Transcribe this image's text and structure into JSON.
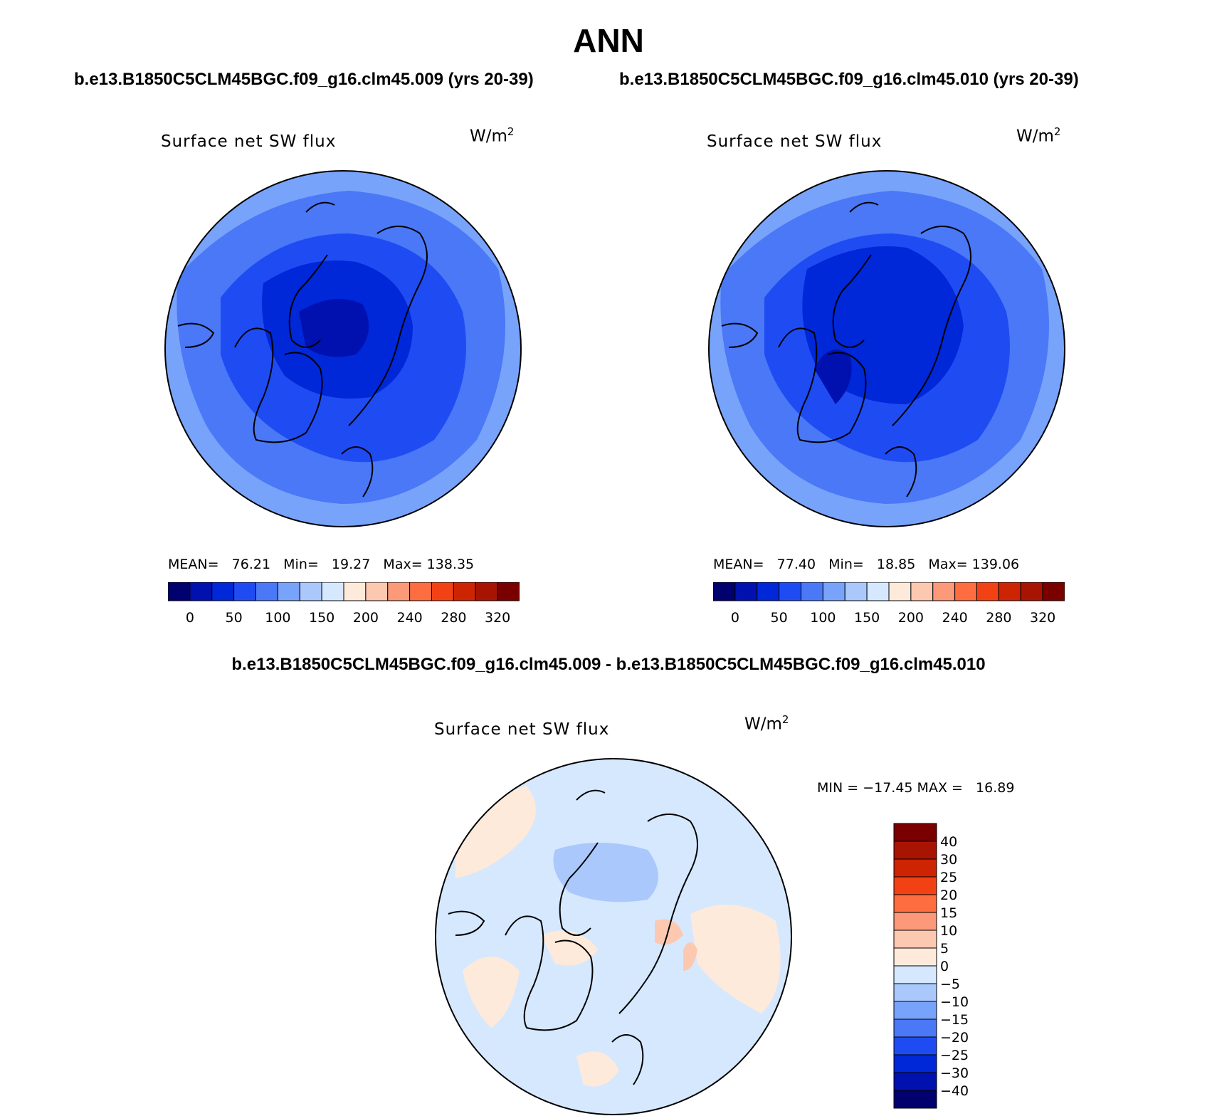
{
  "figure": {
    "title": "ANN",
    "left_case": "b.e13.B1850C5CLM45BGC.f09_g16.clm45.009 (yrs 20-39)",
    "right_case": "b.e13.B1850C5CLM45BGC.f09_g16.clm45.010 (yrs 20-39)",
    "diff_case": "b.e13.B1850C5CLM45BGC.f09_g16.clm45.009 - b.e13.B1850C5CLM45BGC.f09_g16.clm45.010"
  },
  "panels": [
    {
      "variable": "Surface net SW flux",
      "units": "W/m",
      "units_exp": "2",
      "stats_text": "MEAN=   76.21   Min=   19.27   Max= 138.35"
    },
    {
      "variable": "Surface net SW flux",
      "units": "W/m",
      "units_exp": "2",
      "stats_text": "MEAN=   77.40   Min=   18.85   Max= 139.06"
    }
  ],
  "diff_panel": {
    "variable": "Surface net SW flux",
    "units": "W/m",
    "units_exp": "2",
    "stats_text": "MIN = −17.45 MAX =   16.89"
  },
  "colorbar_abs": {
    "colors": [
      "#00006e",
      "#0011b0",
      "#0027d8",
      "#1f4cf2",
      "#4a78f7",
      "#78a3fa",
      "#aac8fc",
      "#d6e8fe",
      "#feeadb",
      "#fdc8b0",
      "#fc9978",
      "#fd6d40",
      "#f24215",
      "#cd2404",
      "#a81402",
      "#7a0000"
    ],
    "tick_labels": [
      "0",
      "50",
      "100",
      "150",
      "200",
      "240",
      "280",
      "320"
    ]
  },
  "colorbar_diff": {
    "colors": [
      "#00006e",
      "#0011b0",
      "#0027d8",
      "#1f4cf2",
      "#4a78f7",
      "#78a3fa",
      "#aac8fc",
      "#d6e8fe",
      "#feeadb",
      "#fdc8b0",
      "#fc9978",
      "#fd6d40",
      "#f24215",
      "#cd2404",
      "#a81402",
      "#7a0000"
    ],
    "tick_labels": [
      "−40",
      "−30",
      "−25",
      "−20",
      "−15",
      "−10",
      "−5",
      "0",
      "5",
      "10",
      "15",
      "20",
      "25",
      "30",
      "40"
    ]
  }
}
